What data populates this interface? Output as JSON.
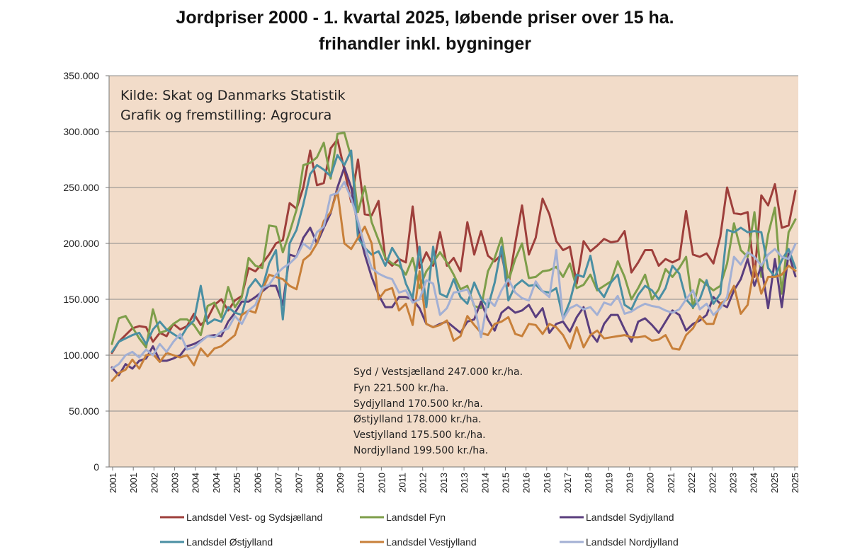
{
  "chart_data": {
    "type": "line",
    "title_lines": [
      "Jordpriser 2000 - 1. kvartal 2025, løbende priser over 15 ha.",
      "frihandler inkl. bygninger"
    ],
    "ylim": [
      0,
      350000
    ],
    "y_ticks": [
      {
        "value": 0,
        "label": "0"
      },
      {
        "value": 50000,
        "label": "50.000"
      },
      {
        "value": 100000,
        "label": "100.000"
      },
      {
        "value": 150000,
        "label": "150.000"
      },
      {
        "value": 200000,
        "label": "200.000"
      },
      {
        "value": 250000,
        "label": "250.000"
      },
      {
        "value": 300000,
        "label": "300.000"
      },
      {
        "value": 350000,
        "label": "350.000"
      }
    ],
    "x_tick_labels": [
      "2001",
      "2001",
      "2002",
      "2003",
      "2004",
      "2004",
      "2005",
      "2006",
      "2007",
      "2007",
      "2008",
      "2009",
      "2010",
      "2010",
      "2011",
      "2012",
      "2013",
      "2013",
      "2014",
      "2015",
      "2016",
      "2016",
      "2017",
      "2018",
      "2019",
      "2019",
      "2020",
      "2021",
      "2022",
      "2022",
      "2023",
      "2024",
      "2025",
      "2025"
    ],
    "annotation": [
      "Kilde: Skat og Danmarks Statistik",
      "Grafik og fremstilling: Agrocura"
    ],
    "summary": [
      "Syd / Vestsjælland 247.000 kr./ha.",
      "Fyn 221.500 kr./ha.",
      "Sydjylland 170.500 kr./ha.",
      "Østjylland 178.000 kr./ha.",
      "Vestjylland 175.500 kr./ha.",
      "Nordjylland 199.500 kr./ha."
    ],
    "grid": true,
    "background": "#f2dcc9",
    "legend_position": "bottom",
    "series": [
      {
        "name": "Landsdel Vest- og Sydsjælland",
        "color": "#9e3f3b",
        "values": [
          102000,
          112000,
          118000,
          124000,
          126000,
          125000,
          112000,
          120000,
          117000,
          128000,
          123000,
          126000,
          137000,
          127000,
          133000,
          145000,
          150000,
          140000,
          149000,
          153000,
          178000,
          175000,
          182000,
          190000,
          200000,
          203000,
          236000,
          231000,
          250000,
          283000,
          252000,
          254000,
          285000,
          293000,
          266000,
          237000,
          275000,
          226000,
          225000,
          238000,
          186000,
          180000,
          186000,
          183000,
          233000,
          178000,
          192000,
          180000,
          210000,
          180000,
          187000,
          175000,
          219000,
          190000,
          211000,
          189000,
          184000,
          190000,
          162000,
          200000,
          234000,
          190000,
          205000,
          240000,
          226000,
          202000,
          194000,
          197000,
          164000,
          202000,
          193000,
          198000,
          204000,
          201000,
          202000,
          211000,
          174000,
          183000,
          194000,
          194000,
          180000,
          186000,
          183000,
          186000,
          229000,
          190000,
          188000,
          191000,
          182000,
          206000,
          250000,
          227000,
          226000,
          228000,
          170000,
          243000,
          234000,
          253000,
          214000,
          216000,
          247000
        ]
      },
      {
        "name": "Landsdel Fyn",
        "color": "#7e9e4a",
        "values": [
          110000,
          133000,
          135000,
          125000,
          115000,
          107000,
          141000,
          120000,
          122000,
          128000,
          132000,
          132000,
          127000,
          118000,
          144000,
          147000,
          134000,
          161000,
          143000,
          152000,
          187000,
          180000,
          178000,
          216000,
          215000,
          192000,
          210000,
          230000,
          270000,
          272000,
          277000,
          290000,
          258000,
          298000,
          299000,
          277000,
          228000,
          251000,
          219000,
          203000,
          187000,
          182000,
          180000,
          172000,
          187000,
          160000,
          175000,
          183000,
          192000,
          183000,
          172000,
          159000,
          162000,
          144000,
          142000,
          175000,
          187000,
          205000,
          166000,
          186000,
          200000,
          169000,
          170000,
          175000,
          176000,
          179000,
          170000,
          182000,
          160000,
          163000,
          172000,
          158000,
          162000,
          166000,
          184000,
          170000,
          150000,
          160000,
          172000,
          150000,
          159000,
          177000,
          170000,
          178000,
          188000,
          142000,
          168000,
          163000,
          158000,
          162000,
          182000,
          218000,
          194000,
          188000,
          228000,
          170000,
          208000,
          232000,
          155000,
          210000,
          221500
        ]
      },
      {
        "name": "Landsdel Sydjylland",
        "color": "#5a3e7e",
        "values": [
          89000,
          82000,
          92000,
          88000,
          95000,
          97000,
          108000,
          95000,
          95000,
          97000,
          100000,
          108000,
          110000,
          113000,
          117000,
          118000,
          117000,
          130000,
          138000,
          148000,
          148000,
          152000,
          157000,
          162000,
          162000,
          145000,
          190000,
          188000,
          205000,
          214000,
          200000,
          214000,
          227000,
          250000,
          268000,
          250000,
          214000,
          190000,
          170000,
          154000,
          143000,
          143000,
          152000,
          152000,
          150000,
          142000,
          128000,
          125000,
          128000,
          130000,
          125000,
          120000,
          130000,
          132000,
          148000,
          132000,
          122000,
          138000,
          143000,
          138000,
          140000,
          145000,
          134000,
          142000,
          120000,
          128000,
          130000,
          121000,
          134000,
          143000,
          120000,
          112000,
          128000,
          136000,
          136000,
          123000,
          112000,
          130000,
          133000,
          127000,
          120000,
          130000,
          140000,
          136000,
          122000,
          128000,
          131000,
          136000,
          152000,
          146000,
          143000,
          158000,
          168000,
          186000,
          162000,
          180000,
          142000,
          186000,
          143000,
          191000,
          170500
        ]
      },
      {
        "name": "Landsdel Østjylland",
        "color": "#4a8fa3",
        "values": [
          103000,
          112000,
          115000,
          118000,
          120000,
          110000,
          123000,
          130000,
          123000,
          119000,
          115000,
          125000,
          131000,
          162000,
          128000,
          132000,
          130000,
          143000,
          138000,
          136000,
          160000,
          168000,
          160000,
          182000,
          194000,
          132000,
          200000,
          212000,
          235000,
          262000,
          270000,
          266000,
          260000,
          279000,
          270000,
          283000,
          205000,
          196000,
          190000,
          193000,
          180000,
          196000,
          186000,
          164000,
          151000,
          197000,
          143000,
          197000,
          155000,
          152000,
          168000,
          152000,
          146000,
          165000,
          151000,
          143000,
          165000,
          197000,
          149000,
          162000,
          167000,
          162000,
          163000,
          157000,
          156000,
          160000,
          133000,
          148000,
          172000,
          170000,
          189000,
          160000,
          152000,
          165000,
          172000,
          145000,
          141000,
          154000,
          162000,
          158000,
          150000,
          160000,
          180000,
          173000,
          150000,
          143000,
          150000,
          167000,
          146000,
          155000,
          212000,
          210000,
          214000,
          210000,
          211000,
          210000,
          178000,
          170000,
          185000,
          195000,
          178000
        ]
      },
      {
        "name": "Landsdel Vestjylland",
        "color": "#c8803a",
        "values": [
          77000,
          84000,
          87000,
          96000,
          88000,
          100000,
          101000,
          94000,
          102000,
          100000,
          98000,
          100000,
          91000,
          106000,
          99000,
          106000,
          108000,
          113000,
          118000,
          136000,
          140000,
          138000,
          158000,
          172000,
          170000,
          168000,
          162000,
          159000,
          185000,
          190000,
          200000,
          220000,
          228000,
          247000,
          200000,
          195000,
          205000,
          215000,
          200000,
          150000,
          158000,
          160000,
          140000,
          146000,
          127000,
          175000,
          128000,
          125000,
          127000,
          131000,
          113000,
          117000,
          135000,
          127000,
          120000,
          118000,
          128000,
          130000,
          134000,
          119000,
          117000,
          128000,
          127000,
          119000,
          128000,
          125000,
          118000,
          106000,
          125000,
          107000,
          118000,
          122000,
          115000,
          116000,
          117000,
          118000,
          116000,
          116000,
          117000,
          113000,
          114000,
          118000,
          106000,
          105000,
          118000,
          124000,
          135000,
          128000,
          128000,
          146000,
          150000,
          162000,
          137000,
          145000,
          180000,
          155000,
          170000,
          170000,
          172000,
          180000,
          175500
        ]
      },
      {
        "name": "Landsdel Nordjylland",
        "color": "#a3b0d4",
        "values": [
          88000,
          92000,
          100000,
          103000,
          98000,
          105000,
          100000,
          110000,
          103000,
          112000,
          119000,
          105000,
          107000,
          112000,
          117000,
          116000,
          121000,
          124000,
          135000,
          128000,
          140000,
          145000,
          160000,
          163000,
          172000,
          178000,
          182000,
          188000,
          200000,
          195000,
          210000,
          215000,
          243000,
          245000,
          255000,
          240000,
          220000,
          197000,
          178000,
          173000,
          170000,
          168000,
          156000,
          158000,
          147000,
          150000,
          167000,
          164000,
          136000,
          142000,
          156000,
          157000,
          159000,
          145000,
          116000,
          150000,
          144000,
          158000,
          168000,
          156000,
          151000,
          149000,
          166000,
          157000,
          152000,
          194000,
          132000,
          142000,
          145000,
          141000,
          143000,
          136000,
          147000,
          145000,
          153000,
          137000,
          139000,
          143000,
          146000,
          144000,
          143000,
          140000,
          138000,
          141000,
          150000,
          158000,
          141000,
          146000,
          136000,
          142000,
          152000,
          188000,
          181000,
          192000,
          188000,
          180000,
          190000,
          195000,
          188000,
          186000,
          199500
        ]
      }
    ]
  }
}
